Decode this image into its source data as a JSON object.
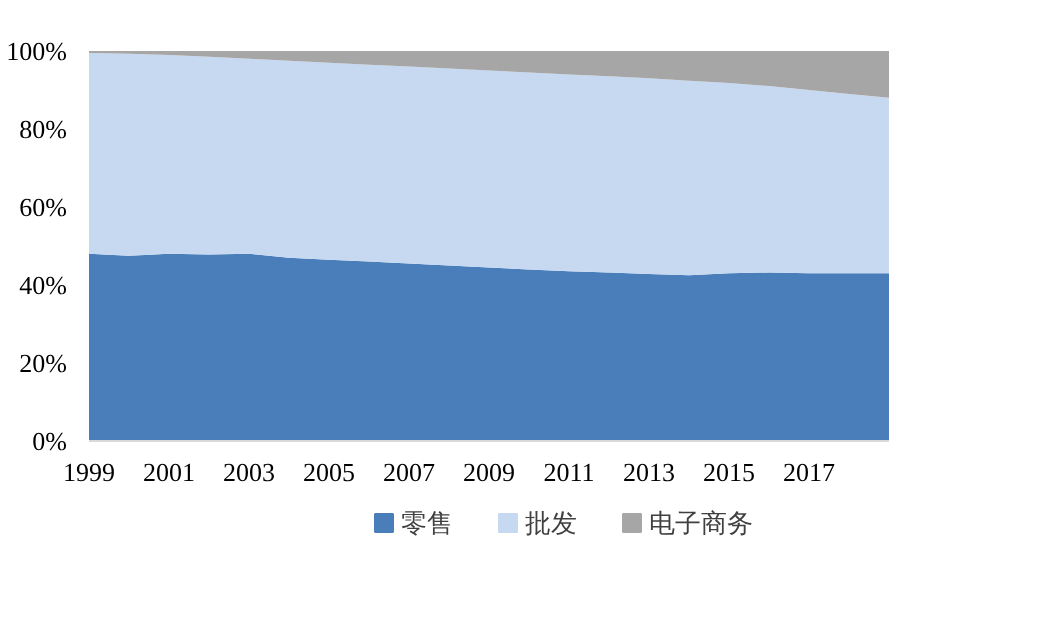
{
  "chart_data": {
    "type": "area",
    "stacked": true,
    "x": [
      1999,
      2000,
      2001,
      2002,
      2003,
      2004,
      2005,
      2006,
      2007,
      2008,
      2009,
      2010,
      2011,
      2012,
      2013,
      2014,
      2015,
      2016,
      2017,
      2018,
      2019
    ],
    "series": [
      {
        "name": "零售",
        "color": "#4a7ebb",
        "values": [
          48,
          47.5,
          48,
          47.8,
          48,
          47,
          46.5,
          46,
          45.5,
          45,
          44.5,
          44,
          43.5,
          43.2,
          42.8,
          42.5,
          43,
          43.2,
          43,
          43,
          43
        ]
      },
      {
        "name": "批发",
        "color": "#c6d9f1",
        "values": [
          51.5,
          51.8,
          51,
          50.7,
          50,
          50.5,
          50.5,
          50.5,
          50.5,
          50.5,
          50.5,
          50.5,
          50.5,
          50.3,
          50.2,
          49.9,
          48.8,
          47.8,
          47,
          46,
          45
        ]
      },
      {
        "name": "电子商务",
        "color": "#a6a6a6",
        "values": [
          0.5,
          0.7,
          1,
          1.5,
          2,
          2.5,
          3,
          3.5,
          4,
          4.5,
          5,
          5.5,
          6,
          6.5,
          7,
          7.6,
          8.2,
          9,
          10,
          11,
          12
        ]
      }
    ],
    "xlim": [
      1999,
      2019
    ],
    "xticks": [
      1999,
      2001,
      2003,
      2005,
      2007,
      2009,
      2011,
      2013,
      2015,
      2017
    ],
    "ylim": [
      0,
      100
    ],
    "yticks": [
      {
        "value": 0,
        "label": "0%"
      },
      {
        "value": 20,
        "label": "20%"
      },
      {
        "value": 40,
        "label": "40%"
      },
      {
        "value": 60,
        "label": "60%"
      },
      {
        "value": 80,
        "label": "80%"
      },
      {
        "value": 100,
        "label": "100%"
      }
    ],
    "grid": false,
    "legend": "bottom"
  }
}
